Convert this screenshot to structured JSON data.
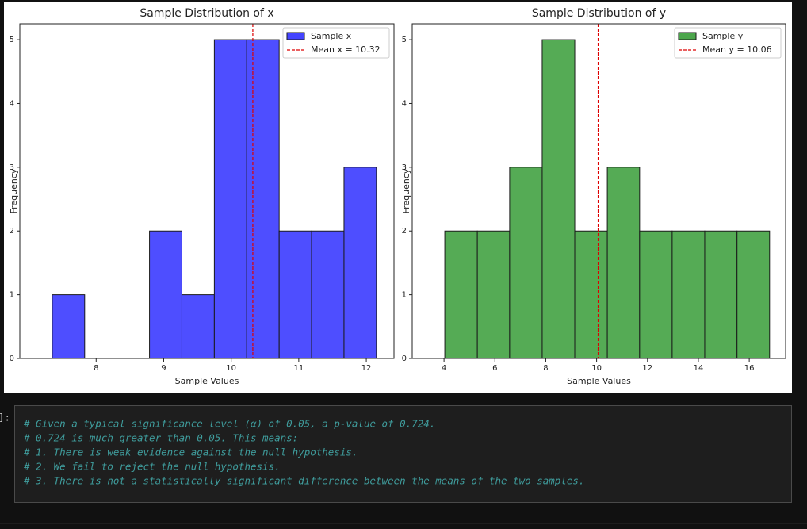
{
  "chart_data": [
    {
      "type": "histogram",
      "title": "Sample Distribution of x",
      "xlabel": "Sample Values",
      "ylabel": "Frequency",
      "bins": [
        7.35,
        7.83,
        8.31,
        8.79,
        9.27,
        9.75,
        10.23,
        10.71,
        11.19,
        11.67,
        12.15
      ],
      "series": [
        {
          "name": "Sample x",
          "color": "#4444ff",
          "values": [
            1,
            0,
            0,
            2,
            1,
            5,
            5,
            2,
            2,
            3
          ]
        }
      ],
      "mean_line": {
        "value": 10.32,
        "label": "Mean x = 10.32",
        "color": "#dd0000"
      },
      "xlim": [
        6.87,
        12.41
      ],
      "xticks": [
        8,
        9,
        10,
        11,
        12
      ],
      "ylim": [
        0,
        5.25
      ],
      "yticks": [
        0,
        1,
        2,
        3,
        4,
        5
      ],
      "legend": "upper right"
    },
    {
      "type": "histogram",
      "title": "Sample Distribution of y",
      "xlabel": "Sample Values",
      "ylabel": "Frequency",
      "bins": [
        4.03,
        5.31,
        6.58,
        7.86,
        9.14,
        10.42,
        11.69,
        12.97,
        14.25,
        15.52,
        16.8
      ],
      "series": [
        {
          "name": "Sample y",
          "color": "#4ca64c",
          "values": [
            2,
            2,
            3,
            5,
            2,
            3,
            2,
            2,
            2,
            2
          ]
        }
      ],
      "mean_line": {
        "value": 10.06,
        "label": "Mean y = 10.06",
        "color": "#dd0000"
      },
      "xlim": [
        2.75,
        17.43
      ],
      "xticks": [
        4,
        6,
        8,
        10,
        12,
        14,
        16
      ],
      "ylim": [
        0,
        5.25
      ],
      "yticks": [
        0,
        1,
        2,
        3,
        4,
        5
      ],
      "legend": "upper right"
    }
  ],
  "code_cell": {
    "prompt": "]:",
    "lines": [
      "# Given a typical significance level (α) of 0.05, a p-value of 0.724.",
      "# 0.724 is much greater than 0.05. This means:",
      "# 1. There is weak evidence against the null hypothesis.",
      "# 2. We fail to reject the null hypothesis.",
      "# 3. There is not a statistically significant difference between the means of the two samples."
    ]
  }
}
